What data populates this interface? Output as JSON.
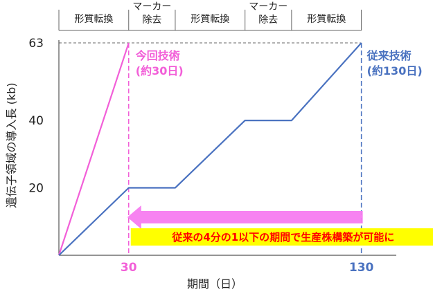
{
  "chart_data": {
    "type": "line",
    "title": "",
    "xlabel": "期間（日）",
    "ylabel": "遺伝子領域の導入長 (kb)",
    "xlim": [
      0,
      145
    ],
    "ylim": [
      0,
      66
    ],
    "y_ticks": [
      {
        "value": 20,
        "label": "20"
      },
      {
        "value": 40,
        "label": "40"
      },
      {
        "value": 63,
        "label": "63"
      }
    ],
    "x_ticks": [
      {
        "value": 30,
        "label": "30",
        "color": "#f25fd8"
      },
      {
        "value": 130,
        "label": "130",
        "color": "#4a72c0"
      }
    ],
    "series": [
      {
        "key": "new",
        "color": "#f25fd8",
        "points": [
          [
            0,
            0
          ],
          [
            30,
            63
          ]
        ]
      },
      {
        "key": "old",
        "color": "#4a72c0",
        "points": [
          [
            0,
            0
          ],
          [
            30,
            20
          ],
          [
            50,
            20
          ],
          [
            80,
            40
          ],
          [
            100,
            40
          ],
          [
            130,
            63
          ]
        ]
      }
    ],
    "annotations": [
      {
        "line1": "今回技術",
        "line2": "(約30日)",
        "x": 30,
        "y": 63,
        "color": "#f25fd8"
      },
      {
        "line1": "従来技術",
        "line2": "(約130日)",
        "x": 130,
        "y": 63,
        "color": "#4a72c0"
      }
    ],
    "phases": [
      {
        "label": [
          "形質転換"
        ],
        "x0": 0,
        "x1": 30
      },
      {
        "label": [
          "マーカー",
          "除去"
        ],
        "x0": 30,
        "x1": 50
      },
      {
        "label": [
          "形質転換"
        ],
        "x0": 50,
        "x1": 80
      },
      {
        "label": [
          "マーカー",
          "除去"
        ],
        "x0": 80,
        "x1": 100
      },
      {
        "label": [
          "形質転換"
        ],
        "x0": 100,
        "x1": 130
      }
    ],
    "arrow": {
      "from_x": 130,
      "to_x": 30,
      "color": "#f77cf0"
    },
    "banner": {
      "text": "従来の4分の1以下の期間で生産株構築が可能に",
      "text_color": "#ff0000",
      "background": "#ffff00"
    },
    "grid": false,
    "legend": "none"
  }
}
